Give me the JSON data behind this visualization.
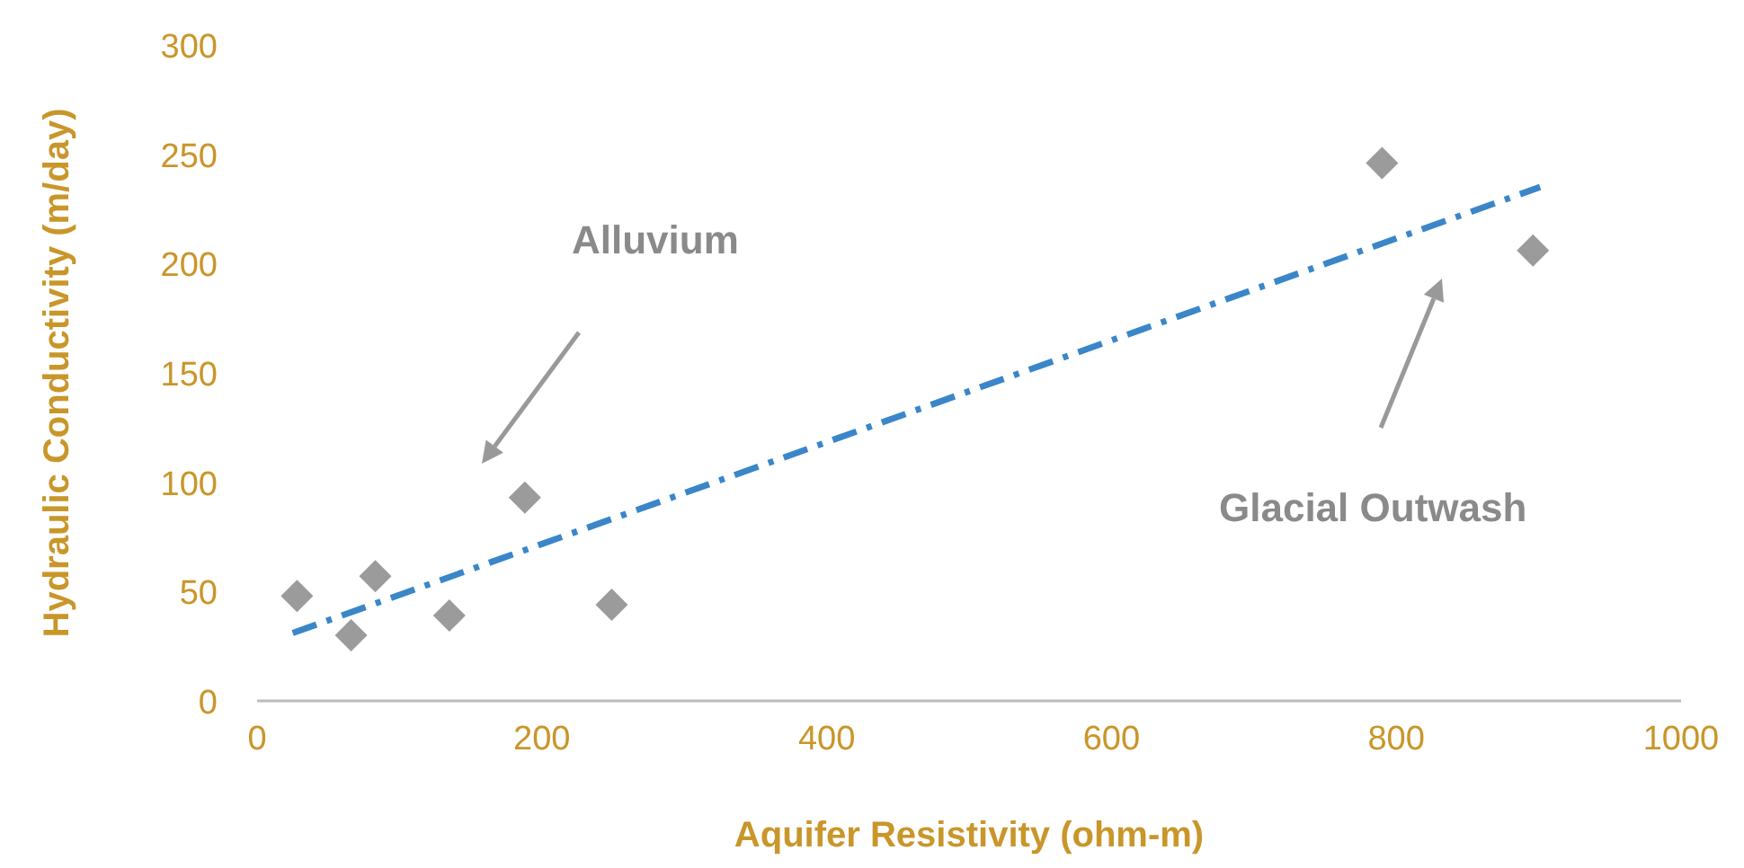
{
  "chart_data": {
    "type": "scatter",
    "xlabel": "Aquifer Resistivity (ohm-m)",
    "ylabel": "Hydraulic Conductivity (m/day)",
    "xlim": [
      0,
      1000
    ],
    "xticks": [
      0,
      200,
      400,
      600,
      800,
      1000
    ],
    "ylim": [
      0,
      300
    ],
    "yticks": [
      0,
      50,
      100,
      150,
      200,
      250,
      300
    ],
    "grid": false,
    "series": [
      {
        "color": "#9b9b9b",
        "marker": "diamond",
        "x": [
          28,
          66,
          83,
          135,
          188,
          249,
          790,
          896
        ],
        "values": [
          48,
          30,
          57,
          39,
          93,
          44,
          246,
          206
        ]
      },
      {
        "type": "line",
        "color": "#3a86c8",
        "line_style": "dashed",
        "marker": "none",
        "x": [
          25,
          901
        ],
        "values": [
          31,
          235
        ]
      }
    ],
    "annotations": [
      "Alluvium",
      "Glacial Outwash"
    ]
  }
}
